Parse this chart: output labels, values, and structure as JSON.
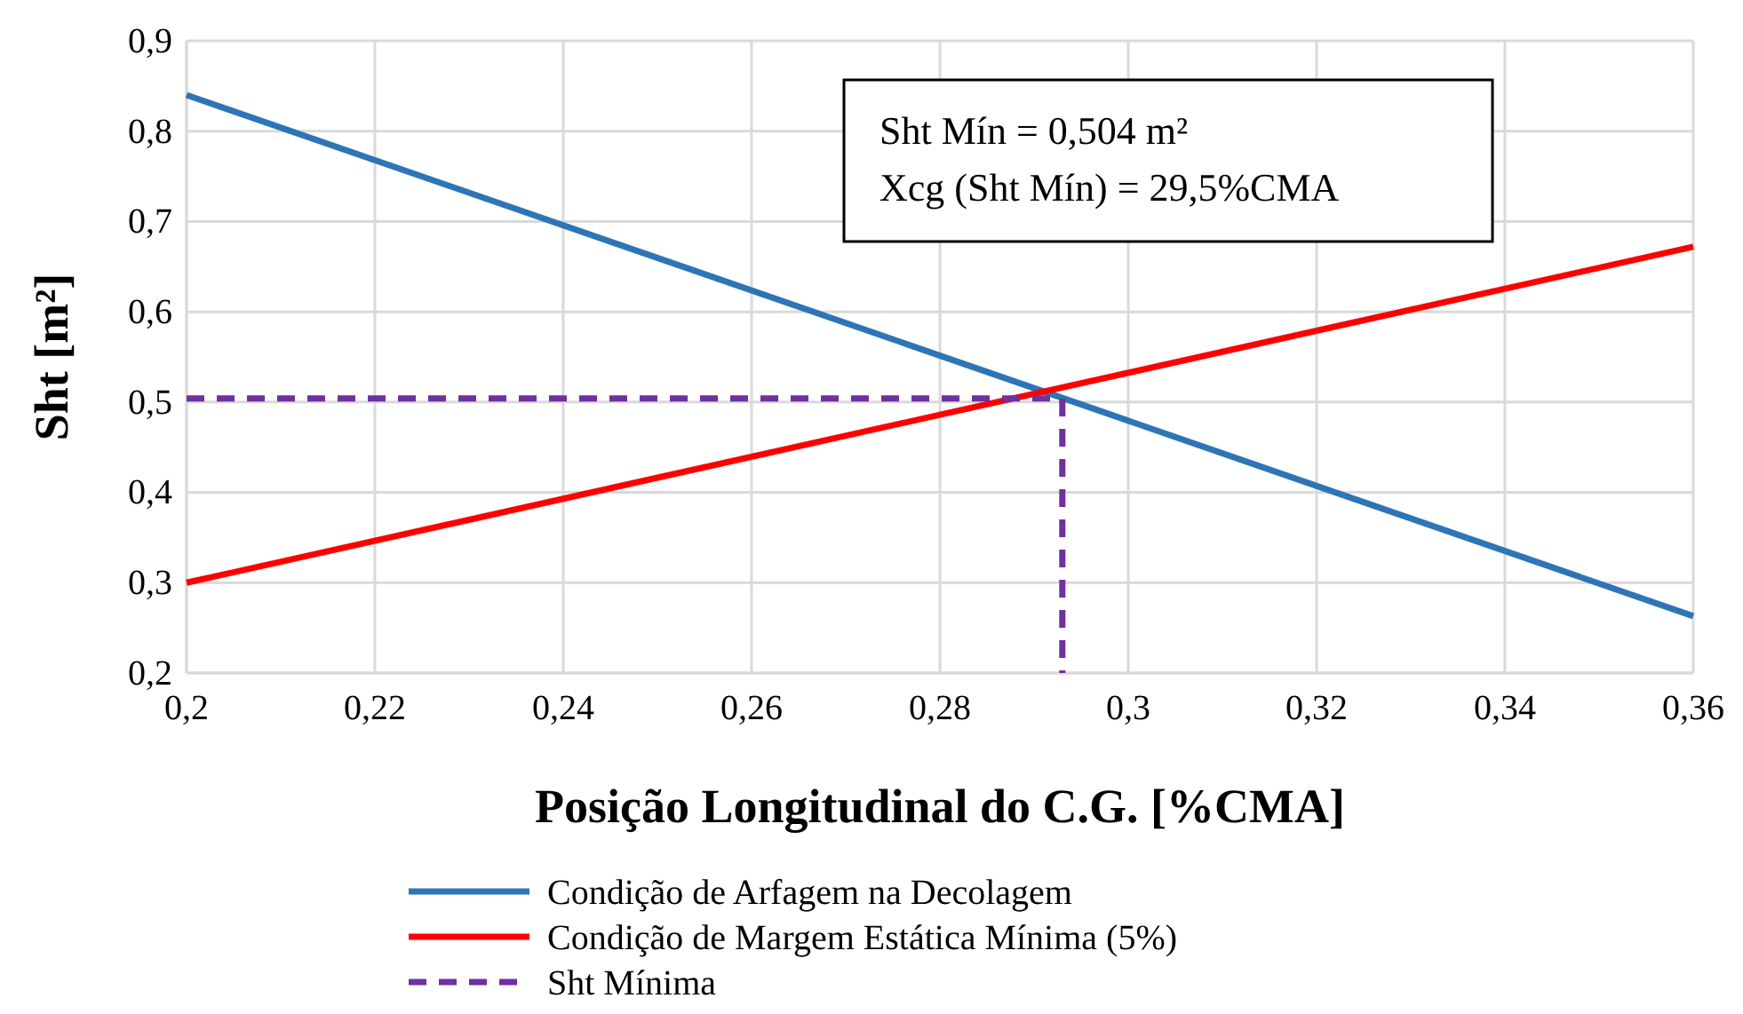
{
  "chart_data": {
    "type": "line",
    "xlabel": "Posição Longitudinal do C.G. [%CMA]",
    "ylabel": "Sht [m²]",
    "xlim": [
      0.2,
      0.36
    ],
    "ylim": [
      0.2,
      0.9
    ],
    "xticks": [
      {
        "value": 0.2,
        "label": "0,2"
      },
      {
        "value": 0.22,
        "label": "0,22"
      },
      {
        "value": 0.24,
        "label": "0,24"
      },
      {
        "value": 0.26,
        "label": "0,26"
      },
      {
        "value": 0.28,
        "label": "0,28"
      },
      {
        "value": 0.3,
        "label": "0,3"
      },
      {
        "value": 0.32,
        "label": "0,32"
      },
      {
        "value": 0.34,
        "label": "0,34"
      },
      {
        "value": 0.36,
        "label": "0,36"
      }
    ],
    "yticks": [
      {
        "value": 0.2,
        "label": "0,2"
      },
      {
        "value": 0.3,
        "label": "0,3"
      },
      {
        "value": 0.4,
        "label": "0,4"
      },
      {
        "value": 0.5,
        "label": "0,5"
      },
      {
        "value": 0.6,
        "label": "0,6"
      },
      {
        "value": 0.7,
        "label": "0,7"
      },
      {
        "value": 0.8,
        "label": "0,8"
      },
      {
        "value": 0.9,
        "label": "0,9"
      }
    ],
    "grid": true,
    "legend": "bottom",
    "marker": "none",
    "annotations": [
      "Sht Mín = 0,504 m²",
      "Xcg (Sht Mín) = 29,5%CMA"
    ],
    "series": [
      {
        "name": "Condição de Arfagem na Decolagem",
        "color": "#2e75b6",
        "x": [
          0.2,
          0.36
        ],
        "values": [
          0.84,
          0.263
        ],
        "line_style": "solid"
      },
      {
        "name": "Condição de Margem Estática Mínima (5%)",
        "color": "#ff0000",
        "x": [
          0.2,
          0.36
        ],
        "values": [
          0.3,
          0.672
        ],
        "line_style": "solid"
      },
      {
        "name": "Sht Mínima",
        "color": "#7030a0",
        "x": [
          0.2,
          0.293,
          0.293
        ],
        "values": [
          0.504,
          0.504,
          0.2
        ],
        "line_style": "dashed"
      }
    ]
  }
}
